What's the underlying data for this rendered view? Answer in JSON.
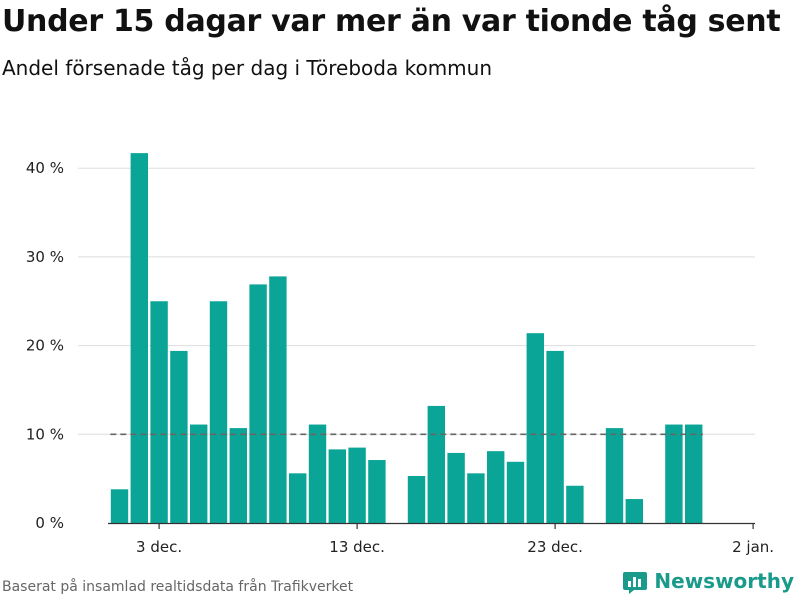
{
  "title": "Under 15 dagar var mer än var tionde tåg sent",
  "subtitle": "Andel försenade tåg per dag i Töreboda kommun",
  "footer": "Baserat på insamlad realtidsdata från Trafikverket",
  "brand": {
    "name": "Newsworthy",
    "icon": "newsworthy-logo-icon",
    "color": "#1a9a8b"
  },
  "colors": {
    "bar": "#0ba597",
    "grid": "#dddddd",
    "axis": "#333333",
    "reference": "#666666"
  },
  "chart_data": {
    "type": "bar",
    "x": [
      "1 dec.",
      "2 dec.",
      "3 dec.",
      "4 dec.",
      "5 dec.",
      "6 dec.",
      "7 dec.",
      "8 dec.",
      "9 dec.",
      "10 dec.",
      "11 dec.",
      "12 dec.",
      "13 dec.",
      "14 dec.",
      "15 dec.",
      "16 dec.",
      "17 dec.",
      "18 dec.",
      "19 dec.",
      "20 dec.",
      "21 dec.",
      "22 dec.",
      "23 dec.",
      "24 dec.",
      "25 dec.",
      "26 dec.",
      "27 dec.",
      "28 dec.",
      "29 dec.",
      "30 dec."
    ],
    "values": [
      3.8,
      41.7,
      25.0,
      19.4,
      11.1,
      25.0,
      10.7,
      26.9,
      27.8,
      5.6,
      11.1,
      8.3,
      8.5,
      7.1,
      null,
      5.3,
      13.2,
      7.9,
      5.6,
      8.1,
      6.9,
      21.4,
      19.4,
      4.2,
      null,
      10.7,
      2.7,
      null,
      11.1,
      11.1
    ],
    "reference_line": {
      "value": 10,
      "from": "1 dec.",
      "to": "30 dec."
    },
    "y_ticks": [
      0,
      10,
      20,
      30,
      40
    ],
    "y_tick_labels": [
      "0 %",
      "10 %",
      "20 %",
      "30 %",
      "40 %"
    ],
    "ylim": [
      0,
      43
    ],
    "x_ticks": [
      "3 dec.",
      "13 dec.",
      "23 dec.",
      "2 jan."
    ],
    "x_tick_positions": [
      "3 dec.",
      "13 dec.",
      "23 dec.",
      "2 jan."
    ],
    "grid": true,
    "xlabel": "",
    "ylabel": ""
  }
}
